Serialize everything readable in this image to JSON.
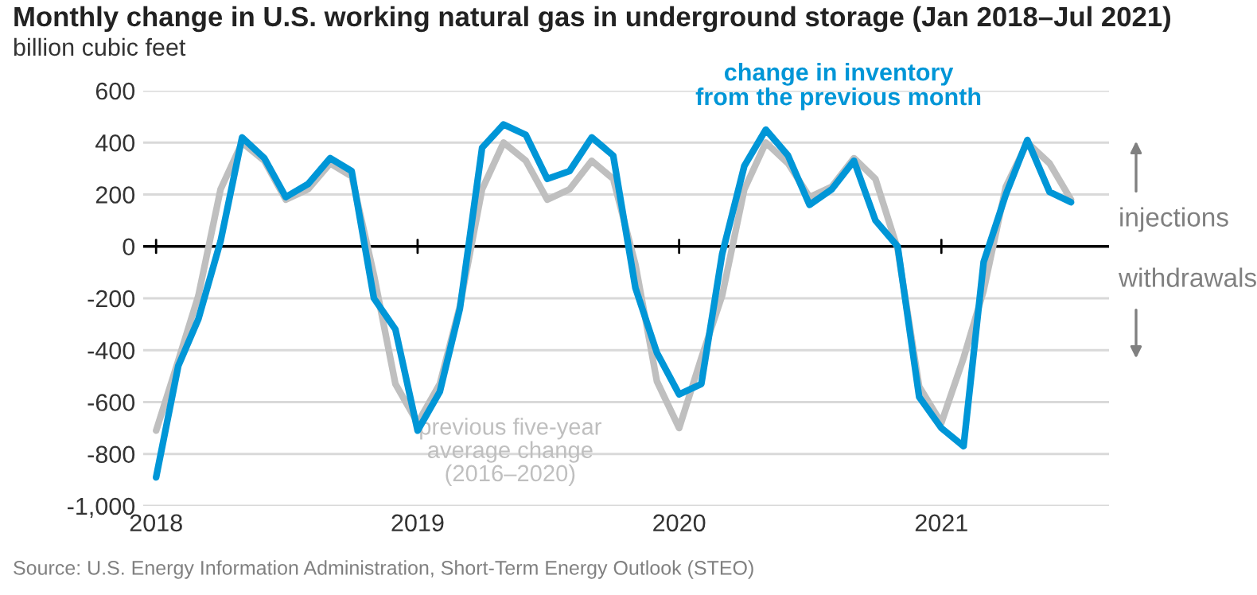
{
  "chart_data": {
    "type": "line",
    "title": "Monthly change in U.S. working natural gas in underground storage (Jan 2018–Jul 2021)",
    "ylabel": "billion cubic feet",
    "x": [
      "2018-01",
      "2018-02",
      "2018-03",
      "2018-04",
      "2018-05",
      "2018-06",
      "2018-07",
      "2018-08",
      "2018-09",
      "2018-10",
      "2018-11",
      "2018-12",
      "2019-01",
      "2019-02",
      "2019-03",
      "2019-04",
      "2019-05",
      "2019-06",
      "2019-07",
      "2019-08",
      "2019-09",
      "2019-10",
      "2019-11",
      "2019-12",
      "2020-01",
      "2020-02",
      "2020-03",
      "2020-04",
      "2020-05",
      "2020-06",
      "2020-07",
      "2020-08",
      "2020-09",
      "2020-10",
      "2020-11",
      "2020-12",
      "2021-01",
      "2021-02",
      "2021-03",
      "2021-04",
      "2021-05",
      "2021-06",
      "2021-07"
    ],
    "series": [
      {
        "name": "previous five-year\naverage change\n(2016–2020)",
        "color": "#bfbfbf",
        "values": [
          -710,
          -440,
          -190,
          220,
          400,
          330,
          180,
          220,
          320,
          270,
          -110,
          -530,
          -680,
          -530,
          -230,
          220,
          400,
          330,
          180,
          220,
          330,
          260,
          -70,
          -520,
          -700,
          -430,
          -190,
          220,
          400,
          320,
          190,
          230,
          340,
          260,
          -10,
          -540,
          -680,
          -430,
          -170,
          230,
          400,
          320,
          180
        ]
      },
      {
        "name": "change in inventory\nfrom the previous month",
        "color": "#0096d7",
        "values": [
          -890,
          -460,
          -280,
          20,
          420,
          340,
          190,
          240,
          340,
          290,
          -200,
          -320,
          -710,
          -560,
          -240,
          380,
          470,
          430,
          260,
          290,
          420,
          350,
          -160,
          -410,
          -570,
          -530,
          -30,
          310,
          450,
          350,
          160,
          220,
          330,
          100,
          0,
          -580,
          -700,
          -770,
          -60,
          200,
          410,
          210,
          170
        ]
      }
    ],
    "xlim": [
      "2017-12-14",
      "2021-08-23"
    ],
    "xticks": [
      {
        "value": "2018-01-01",
        "label": "2018"
      },
      {
        "value": "2019-01-01",
        "label": "2019"
      },
      {
        "value": "2020-01-01",
        "label": "2020"
      },
      {
        "value": "2021-01-01",
        "label": "2021"
      }
    ],
    "ylim": [
      -1000,
      600
    ],
    "yticks": [
      {
        "value": -1000,
        "label": "-1,000"
      },
      -800,
      -600,
      -400,
      -200,
      0,
      200,
      400,
      600
    ],
    "grid": "y",
    "ref_lines": [
      {
        "axis": "y",
        "value": 0,
        "color": "#000000"
      }
    ],
    "annotations": [
      "injections",
      "withdrawals",
      "Source: U.S. Energy Information Administration, Short-Term Energy Outlook (STEO)"
    ]
  }
}
